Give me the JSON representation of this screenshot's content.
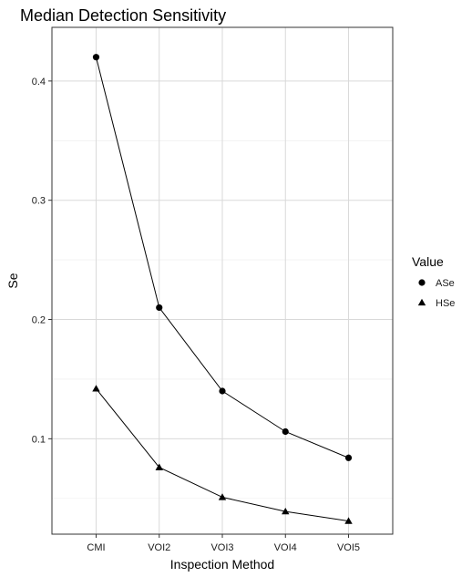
{
  "chart_data": {
    "type": "line",
    "title": "Median Detection Sensitivity",
    "xlabel": "Inspection Method",
    "ylabel": "Se",
    "categories": [
      "CMI",
      "VOI2",
      "VOI3",
      "VOI4",
      "VOI5"
    ],
    "ylim": [
      0.02,
      0.445
    ],
    "yticks": [
      0.1,
      0.2,
      0.3,
      0.4
    ],
    "ytick_labels": [
      "0.1",
      "0.2",
      "0.3",
      "0.4"
    ],
    "grid": true,
    "legend": {
      "title": "Value",
      "position": "right"
    },
    "series": [
      {
        "name": "ASe",
        "marker": "circle",
        "values": [
          0.42,
          0.21,
          0.14,
          0.106,
          0.084
        ]
      },
      {
        "name": "HSe",
        "marker": "triangle",
        "values": [
          0.142,
          0.076,
          0.051,
          0.039,
          0.031
        ]
      }
    ]
  }
}
